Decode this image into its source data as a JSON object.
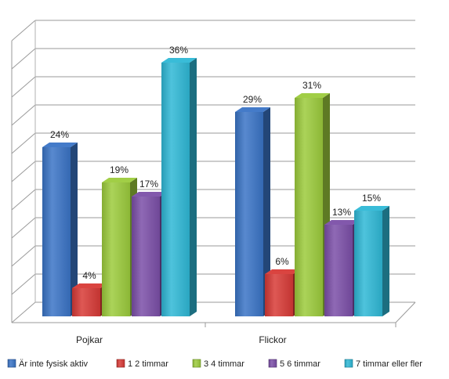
{
  "chart_data": {
    "type": "bar",
    "categories": [
      "Pojkar",
      "Flickor"
    ],
    "series": [
      {
        "name": "Är inte fysisk aktiv",
        "values": [
          24,
          29
        ],
        "labels": [
          "24%",
          "29%"
        ],
        "color": "#3a74c6"
      },
      {
        "name": "1 2 timmar",
        "values": [
          4,
          6
        ],
        "labels": [
          "4%",
          "6%"
        ],
        "color": "#d83a36"
      },
      {
        "name": "3 4 timmar",
        "values": [
          19,
          31
        ],
        "labels": [
          "19%",
          "31%"
        ],
        "color": "#9ccb3c"
      },
      {
        "name": "5 6 timmar",
        "values": [
          17,
          13
        ],
        "labels": [
          "17%",
          "13%"
        ],
        "color": "#7b4fa8"
      },
      {
        "name": "7 timmar eller fler",
        "values": [
          36,
          15
        ],
        "labels": [
          "36%",
          "15%"
        ],
        "color": "#2fb8d6"
      }
    ],
    "ylim": [
      0,
      40
    ],
    "grid": true,
    "legend": "bottom"
  }
}
